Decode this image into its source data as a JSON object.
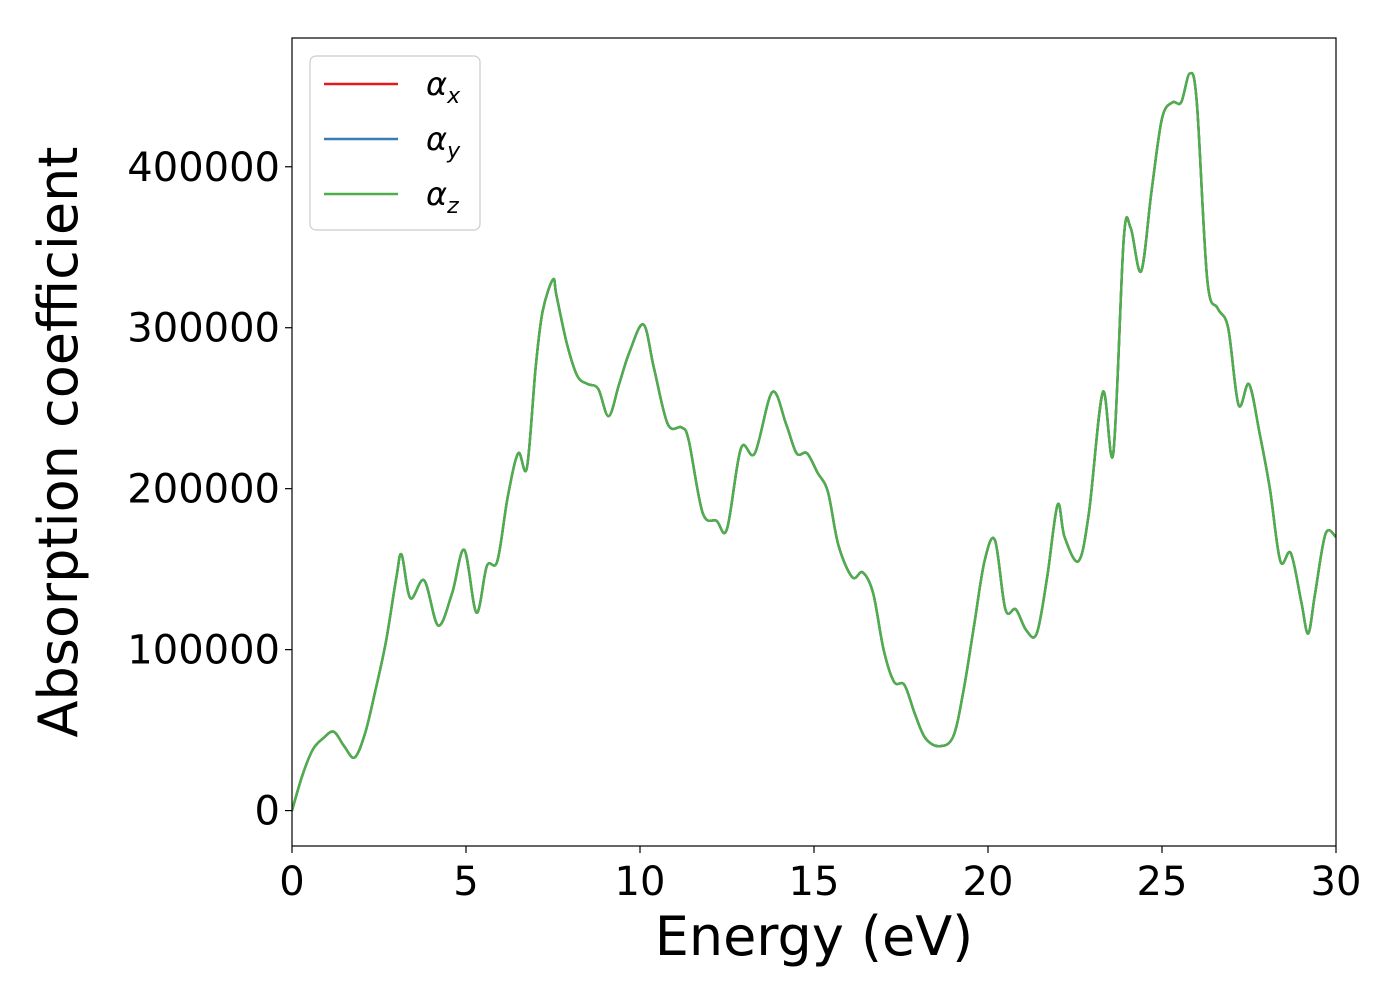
{
  "chart_data": {
    "type": "line",
    "title": "",
    "xlabel": "Energy (eV)",
    "ylabel": "Absorption coefficient",
    "xlim": [
      0,
      30
    ],
    "ylim": [
      -22000,
      480000
    ],
    "xticks": [
      0,
      5,
      10,
      15,
      20,
      25,
      30
    ],
    "xtick_labels": [
      "0",
      "5",
      "10",
      "15",
      "20",
      "25",
      "30"
    ],
    "yticks": [
      0,
      100000,
      200000,
      300000,
      400000
    ],
    "ytick_labels": [
      "0",
      "100000",
      "200000",
      "300000",
      "400000"
    ],
    "grid": false,
    "legend_position": "top-left",
    "series": [
      {
        "name": "α",
        "sub": "x",
        "color": "#e41a1c"
      },
      {
        "name": "α",
        "sub": "y",
        "color": "#377eb8"
      },
      {
        "name": "α",
        "sub": "z",
        "color": "#4daf4a"
      }
    ],
    "x": [
      0,
      0.3,
      0.6,
      0.9,
      1.2,
      1.5,
      1.8,
      2.1,
      2.4,
      2.7,
      3.0,
      3.15,
      3.4,
      3.8,
      4.2,
      4.6,
      4.95,
      5.3,
      5.6,
      5.9,
      6.2,
      6.5,
      6.75,
      7.0,
      7.2,
      7.5,
      7.6,
      7.9,
      8.2,
      8.5,
      8.8,
      9.1,
      9.4,
      9.7,
      10.1,
      10.4,
      10.8,
      11.2,
      11.4,
      11.8,
      12.2,
      12.5,
      12.9,
      13.3,
      13.8,
      14.2,
      14.5,
      14.8,
      15.1,
      15.4,
      15.7,
      16.1,
      16.4,
      16.7,
      17.0,
      17.3,
      17.6,
      17.9,
      18.2,
      18.6,
      19.0,
      19.3,
      19.6,
      19.9,
      20.2,
      20.5,
      20.8,
      21.1,
      21.4,
      21.7,
      22.0,
      22.2,
      22.6,
      22.9,
      23.3,
      23.6,
      23.9,
      24.1,
      24.4,
      24.7,
      25.0,
      25.3,
      25.55,
      25.8,
      26.0,
      26.3,
      26.6,
      26.9,
      27.2,
      27.5,
      27.8,
      28.1,
      28.4,
      28.7,
      29.0,
      29.2,
      29.4,
      29.7,
      30.0
    ],
    "values": [
      0,
      22000,
      38000,
      45000,
      49000,
      40000,
      33000,
      48000,
      75000,
      105000,
      145000,
      159000,
      132000,
      143000,
      115000,
      135000,
      162000,
      123000,
      152000,
      155000,
      195000,
      222000,
      213000,
      275000,
      310000,
      330000,
      320000,
      290000,
      270000,
      265000,
      262000,
      245000,
      265000,
      285000,
      302000,
      275000,
      240000,
      238000,
      230000,
      185000,
      180000,
      175000,
      225000,
      222000,
      260000,
      240000,
      222000,
      222000,
      210000,
      198000,
      165000,
      145000,
      148000,
      135000,
      100000,
      80000,
      78000,
      60000,
      45000,
      40000,
      46000,
      75000,
      115000,
      155000,
      168000,
      125000,
      125000,
      112000,
      110000,
      145000,
      190000,
      170000,
      155000,
      185000,
      260000,
      222000,
      355000,
      362000,
      335000,
      385000,
      430000,
      440000,
      440000,
      458000,
      440000,
      330000,
      312000,
      300000,
      252000,
      265000,
      235000,
      200000,
      155000,
      160000,
      130000,
      110000,
      135000,
      172000,
      170000
    ]
  }
}
